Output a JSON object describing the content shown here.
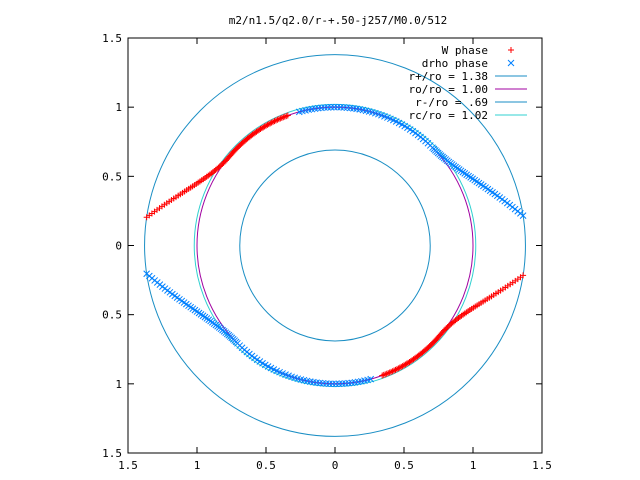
{
  "chart_data": {
    "type": "scatter",
    "title": "m2/n1.5/q2.0/r-+.50-j257/M0.0/512",
    "xlabel": "",
    "ylabel": "",
    "xlim": [
      -1.5,
      1.5
    ],
    "ylim": [
      -1.5,
      1.5
    ],
    "xticks": [
      -1.5,
      -1,
      -0.5,
      0,
      0.5,
      1,
      1.5
    ],
    "yticks": [
      -1.5,
      -1,
      -0.5,
      0,
      0.5,
      1,
      1.5
    ],
    "xtick_labels": [
      "1.5",
      "1",
      "0.5",
      "0",
      "0.5",
      "1",
      "1.5"
    ],
    "ytick_labels": [
      "1.5",
      "1",
      "0.5",
      "0",
      "0.5",
      "1",
      "1.5"
    ],
    "grid": false,
    "legend_position": "top-right",
    "series": [
      {
        "name": "W phase",
        "marker": "+",
        "color": "#ff0000",
        "branches": [
          {
            "r_start": 1.38,
            "r_end": 1.0,
            "theta_start_deg": 171.5,
            "theta_end_deg": 110.0,
            "r_mid": 1.0,
            "theta_mid_deg": 140.0
          },
          {
            "r_start": 1.38,
            "r_end": 1.0,
            "theta_start_deg": -9.0,
            "theta_end_deg": -70.0,
            "r_mid": 1.0,
            "theta_mid_deg": -40.0
          }
        ]
      },
      {
        "name": "drho phase",
        "marker": "x",
        "color": "#0080ff",
        "branches": [
          {
            "r_start": 1.38,
            "r_end": 1.0,
            "theta_start_deg": 9.0,
            "theta_end_deg": 105.0,
            "r_mid": 1.0,
            "theta_mid_deg": 45.0
          },
          {
            "r_start": 1.38,
            "r_end": 1.0,
            "theta_start_deg": -171.5,
            "theta_end_deg": -75.0,
            "r_mid": 1.0,
            "theta_mid_deg": -135.0
          }
        ]
      },
      {
        "name": "r+/ro = 1.38",
        "type": "circle",
        "radius": 1.38,
        "color": "#1a8ec4"
      },
      {
        "name": "ro/ro = 1.00",
        "type": "circle",
        "radius": 1.0,
        "color": "#a000a0"
      },
      {
        "name": "r-/ro = .69",
        "type": "circle",
        "radius": 0.69,
        "color": "#1a8ec4"
      },
      {
        "name": "rc/ro = 1.02",
        "type": "circle",
        "radius": 1.02,
        "color": "#30d0d0"
      }
    ]
  }
}
